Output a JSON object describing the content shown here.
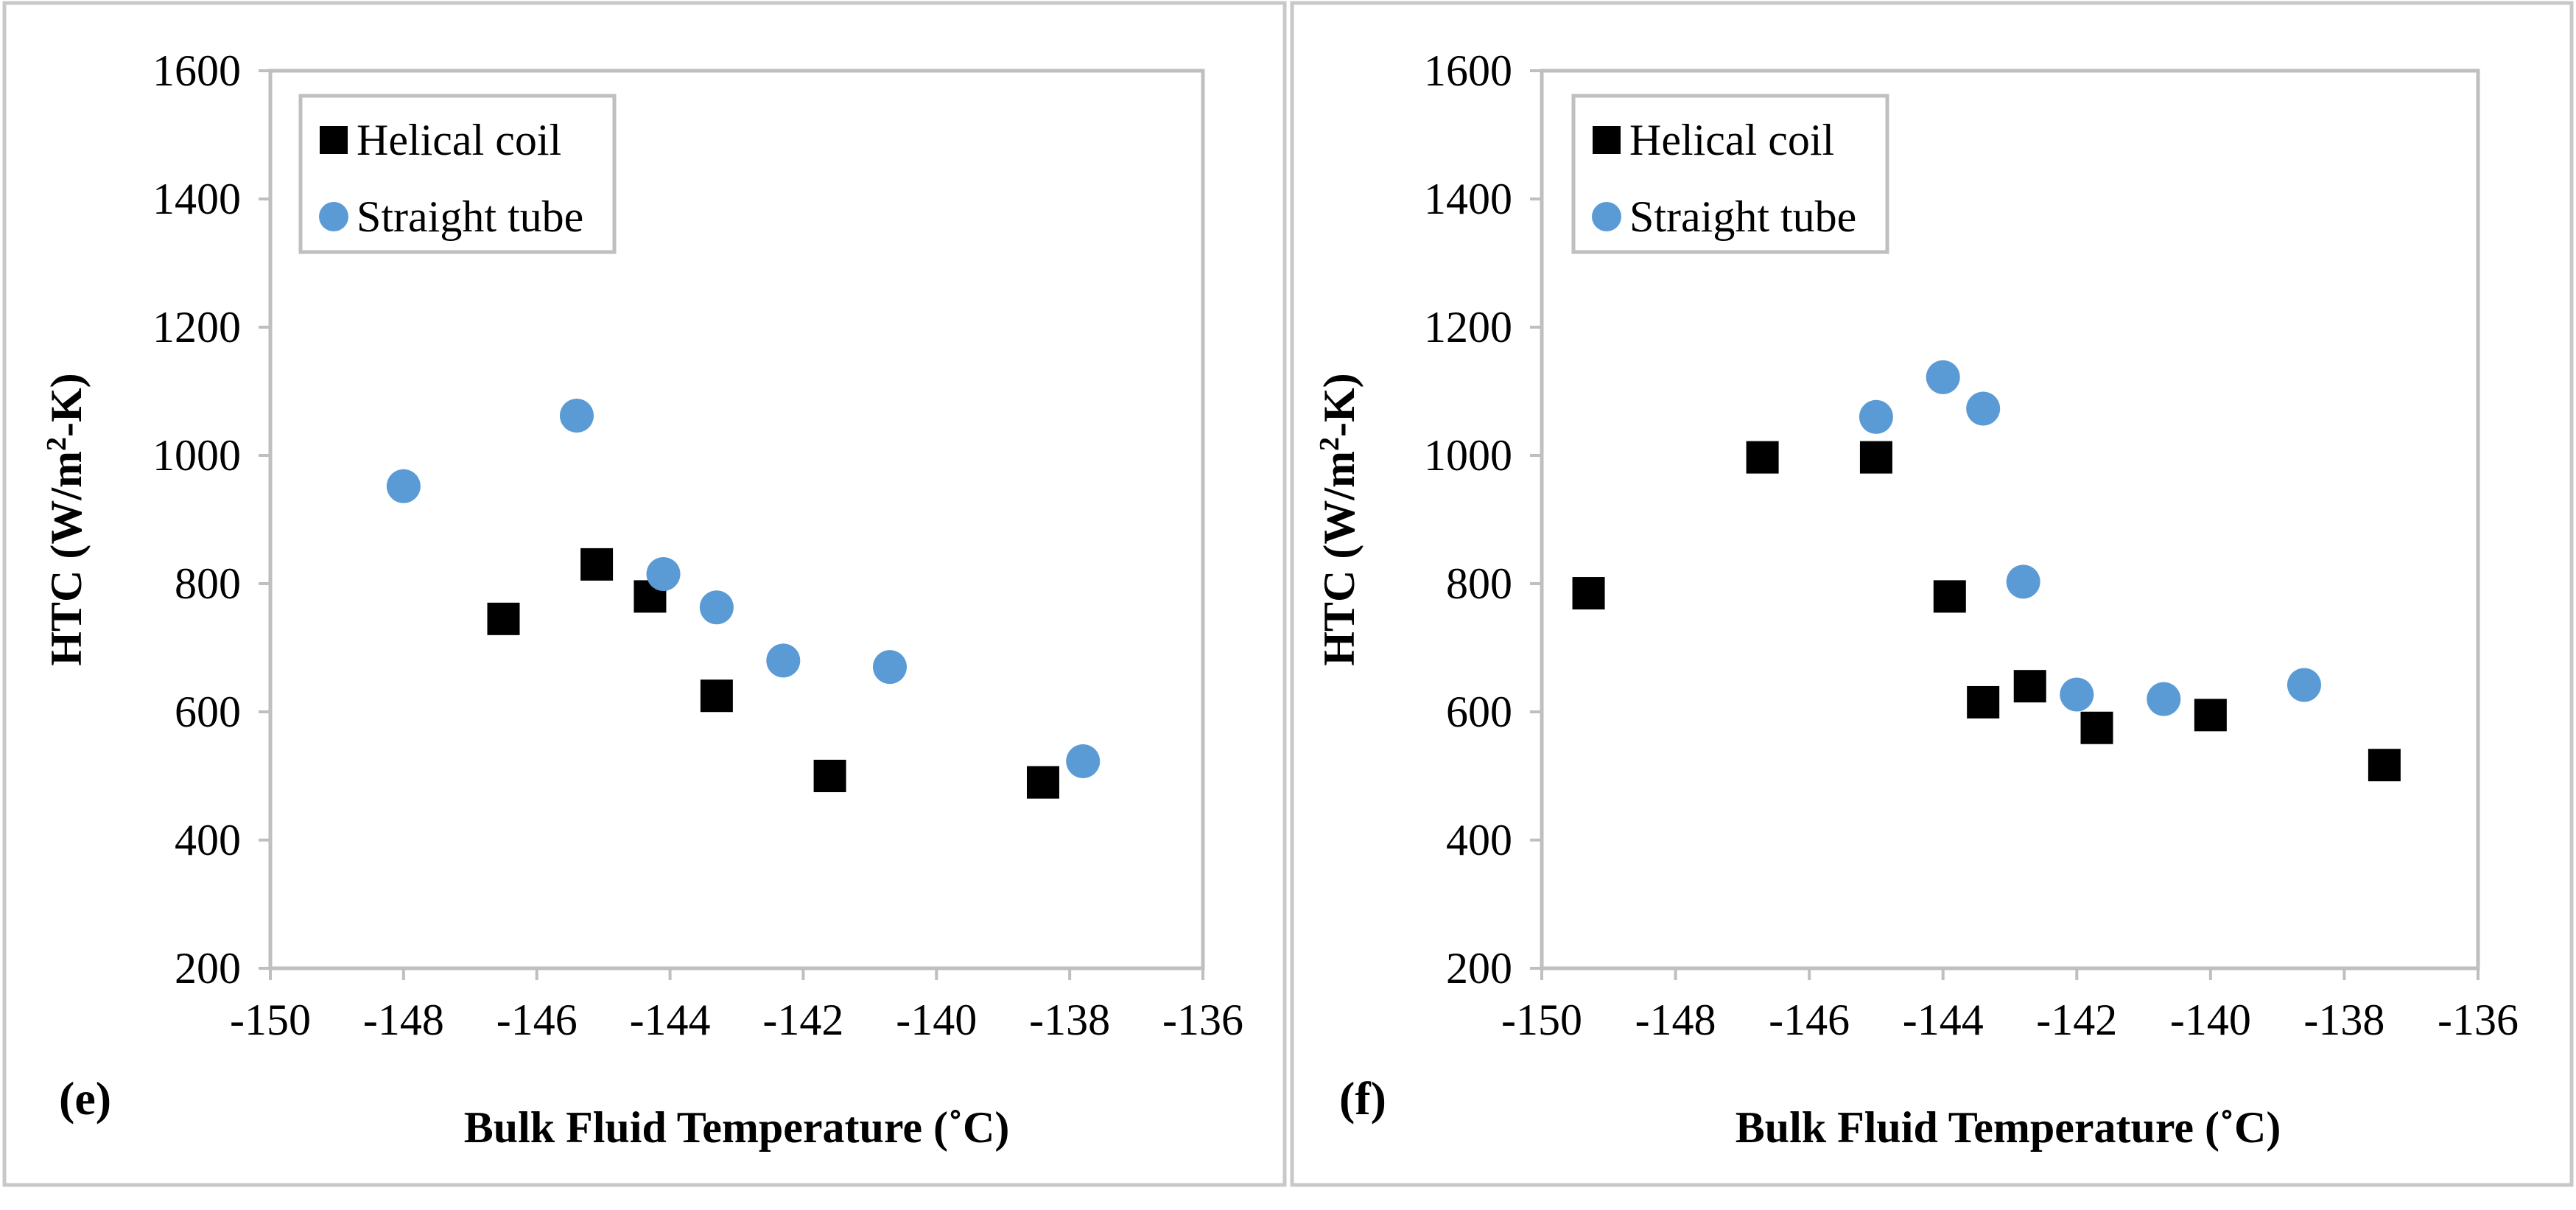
{
  "colors": {
    "helical": "#000000",
    "straight": "#5B9BD5",
    "axis": "#BFBFBF",
    "frame": "#BFBFBF"
  },
  "chart_data": [
    {
      "type": "scatter",
      "panel_label": "(e)",
      "xlabel": "Bulk Fluid Temperature (˚C)",
      "ylabel_main": "HTC (W/m",
      "ylabel_sup": "2",
      "ylabel_tail": "-K)",
      "xlim": [
        -150,
        -136
      ],
      "ylim": [
        200,
        1600
      ],
      "xticks": [
        "-150",
        "-148",
        "-146",
        "-144",
        "-142",
        "-140",
        "-138",
        "-136"
      ],
      "yticks": [
        "200",
        "400",
        "600",
        "800",
        "1000",
        "1200",
        "1400",
        "1600"
      ],
      "grid": false,
      "legend_position": "top-left",
      "series": [
        {
          "name": "Helical coil",
          "marker": "square",
          "points": [
            [
              -146.5,
              745
            ],
            [
              -145.1,
              830
            ],
            [
              -144.3,
              780
            ],
            [
              -143.3,
              625
            ],
            [
              -141.6,
              500
            ],
            [
              -138.4,
              490
            ]
          ]
        },
        {
          "name": "Straight tube",
          "marker": "circle",
          "points": [
            [
              -148.0,
              952
            ],
            [
              -145.4,
              1062
            ],
            [
              -144.1,
              815
            ],
            [
              -143.3,
              763
            ],
            [
              -142.3,
              680
            ],
            [
              -140.7,
              670
            ],
            [
              -137.8,
              523
            ]
          ]
        }
      ]
    },
    {
      "type": "scatter",
      "panel_label": "(f)",
      "xlabel": "Bulk Fluid Temperature (˚C)",
      "ylabel_main": "HTC (W/m",
      "ylabel_sup": "2",
      "ylabel_tail": "-K)",
      "xlim": [
        -150,
        -136
      ],
      "ylim": [
        200,
        1600
      ],
      "xticks": [
        "-150",
        "-148",
        "-146",
        "-144",
        "-142",
        "-140",
        "-138",
        "-136"
      ],
      "yticks": [
        "200",
        "400",
        "600",
        "800",
        "1000",
        "1200",
        "1400",
        "1600"
      ],
      "grid": false,
      "legend_position": "top-left",
      "series": [
        {
          "name": "Helical coil",
          "marker": "square",
          "points": [
            [
              -149.3,
              785
            ],
            [
              -146.7,
              997
            ],
            [
              -145.0,
              997
            ],
            [
              -143.9,
              780
            ],
            [
              -143.4,
              615
            ],
            [
              -142.7,
              640
            ],
            [
              -141.7,
              575
            ],
            [
              -140.0,
              595
            ],
            [
              -137.4,
              517
            ]
          ]
        },
        {
          "name": "Straight tube",
          "marker": "circle",
          "points": [
            [
              -145.0,
              1060
            ],
            [
              -144.0,
              1122
            ],
            [
              -143.4,
              1073
            ],
            [
              -142.8,
              803
            ],
            [
              -142.0,
              627
            ],
            [
              -140.7,
              620
            ],
            [
              -138.6,
              642
            ]
          ]
        }
      ]
    }
  ]
}
